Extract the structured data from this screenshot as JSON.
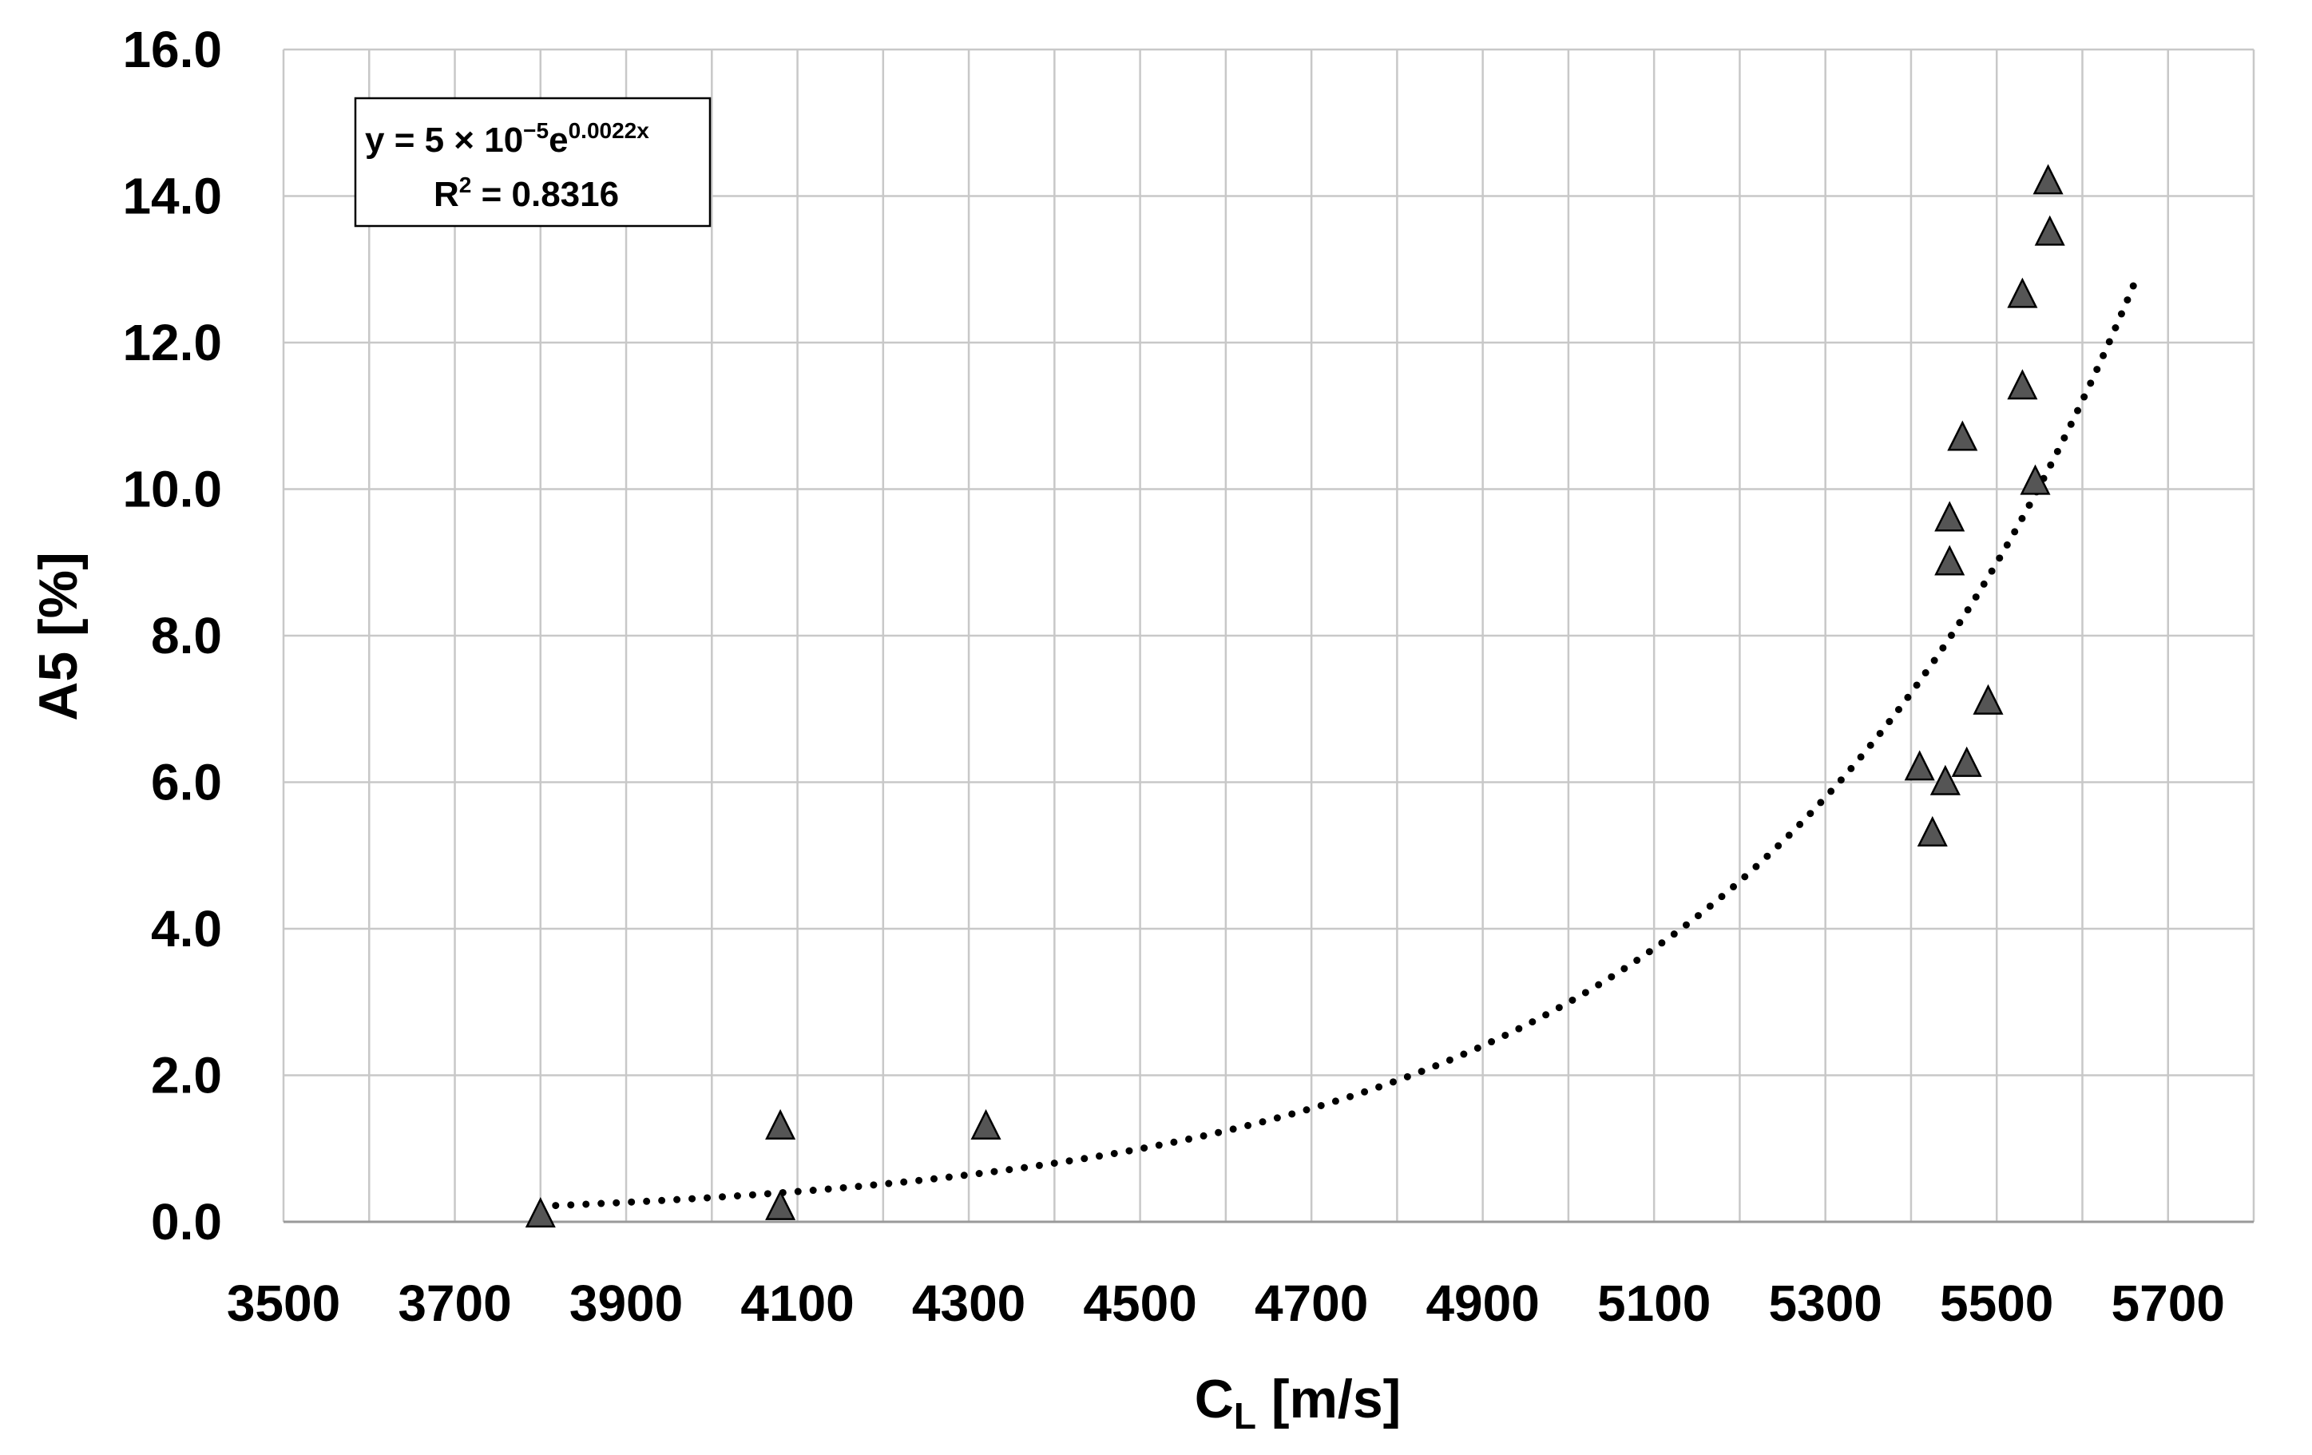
{
  "chart_data": {
    "type": "scatter",
    "xlabel": "C",
    "xlabel_sub": "L",
    "xlabel_unit": " [m/s]",
    "ylabel": "A5 [%]",
    "xlim": [
      3500,
      5800
    ],
    "ylim": [
      0,
      16
    ],
    "x_ticks": [
      3500,
      3700,
      3900,
      4100,
      4300,
      4500,
      4700,
      4900,
      5100,
      5300,
      5500,
      5700
    ],
    "y_ticks": [
      0,
      2,
      4,
      6,
      8,
      10,
      12,
      14,
      16
    ],
    "y_tick_labels": [
      "0.0",
      "2.0",
      "4.0",
      "6.0",
      "8.0",
      "10.0",
      "12.0",
      "14.0",
      "16.0"
    ],
    "grid": true,
    "marker": "triangle",
    "marker_color": "#555555",
    "points": [
      {
        "x": 3800,
        "y": 0.1
      },
      {
        "x": 4080,
        "y": 1.3
      },
      {
        "x": 4080,
        "y": 0.2
      },
      {
        "x": 4320,
        "y": 1.3
      },
      {
        "x": 5410,
        "y": 6.2
      },
      {
        "x": 5425,
        "y": 5.3
      },
      {
        "x": 5440,
        "y": 6.0
      },
      {
        "x": 5445,
        "y": 9.6
      },
      {
        "x": 5445,
        "y": 9.0
      },
      {
        "x": 5460,
        "y": 10.7
      },
      {
        "x": 5465,
        "y": 6.25
      },
      {
        "x": 5490,
        "y": 7.1
      },
      {
        "x": 5530,
        "y": 12.65
      },
      {
        "x": 5530,
        "y": 11.4
      },
      {
        "x": 5545,
        "y": 10.1
      },
      {
        "x": 5560,
        "y": 14.2
      },
      {
        "x": 5562,
        "y": 13.5
      }
    ],
    "trendline": {
      "type": "exponential",
      "a": 5e-05,
      "b": 0.0022,
      "x_range": [
        3800,
        5660
      ],
      "style": "dotted",
      "color": "#000000"
    },
    "annotation": {
      "equation_prefix": "y = 5 × 10",
      "equation_exp1": "−5",
      "equation_mid": "e",
      "equation_exp2": "0.0022x",
      "r2_prefix": "R",
      "r2_sup": "2",
      "r2_value": " = 0.8316"
    }
  }
}
